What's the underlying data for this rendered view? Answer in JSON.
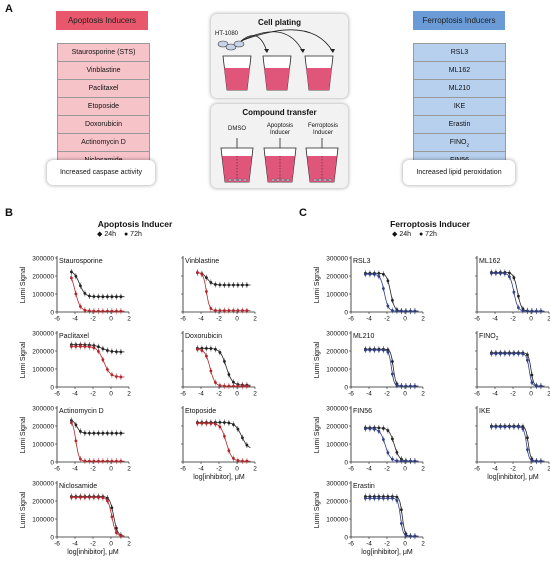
{
  "panelA": {
    "letter": "A",
    "apoptosis": {
      "header": "Apoptosis Inducers",
      "items": [
        "Staurosporine (STS)",
        "Vinblastine",
        "Paclitaxel",
        "Etoposide",
        "Doxorubicin",
        "Actinomycin D",
        "Niclosamide"
      ],
      "outcome": "Increased caspase activity"
    },
    "ferroptosis": {
      "header": "Ferroptosis Inducers",
      "items": [
        "RSL3",
        "ML162",
        "ML210",
        "IKE",
        "Erastin",
        "FINO",
        "FIN56"
      ],
      "fino_sub": "2",
      "outcome": "Increased lipid peroxidation"
    },
    "plating": {
      "title": "Cell plating",
      "cell_line": "HT-1080"
    },
    "transfer": {
      "title": "Compound transfer",
      "wells": [
        "DMSO",
        "Apoptosis Inducer",
        "Ferroptosis Inducer"
      ]
    }
  },
  "panelB": {
    "letter": "B",
    "title": "Apoptosis Inducer",
    "legend": [
      "24h",
      "72h"
    ],
    "color_24h": "#222222",
    "color_72h": "#b3262b"
  },
  "panelC": {
    "letter": "C",
    "title": "Ferroptosis Inducer",
    "legend": [
      "24h",
      "72h"
    ],
    "color_24h": "#222222",
    "color_72h": "#2f3f85"
  },
  "axis": {
    "ylabel": "Lumi Signal",
    "xlabel": "log[inhibitor], μM",
    "yticks": [
      "0",
      "100000",
      "200000",
      "300000"
    ],
    "xticks": [
      "-6",
      "-4",
      "-2",
      "0",
      "2"
    ]
  },
  "chart_data": [
    {
      "type": "scatter",
      "panel": "B",
      "title": "Staurosporine",
      "xlim": [
        -6,
        2
      ],
      "ylim": [
        0,
        300000
      ],
      "series": [
        {
          "name": "24h",
          "top": 230000,
          "bottom": 85000,
          "ic50": -3.5,
          "hill": 1.4
        },
        {
          "name": "72h",
          "top": 235000,
          "bottom": 5000,
          "ic50": -4.0,
          "hill": 1.5
        }
      ]
    },
    {
      "type": "scatter",
      "panel": "B",
      "title": "Vinblastine",
      "xlim": [
        -6,
        2
      ],
      "ylim": [
        0,
        300000
      ],
      "series": [
        {
          "name": "24h",
          "top": 220000,
          "bottom": 150000,
          "ic50": -3.3,
          "hill": 1.5
        },
        {
          "name": "72h",
          "top": 220000,
          "bottom": 8000,
          "ic50": -3.4,
          "hill": 2.5
        }
      ]
    },
    {
      "type": "scatter",
      "panel": "B",
      "title": "Paclitaxel",
      "xlim": [
        -6,
        2
      ],
      "ylim": [
        0,
        300000
      ],
      "series": [
        {
          "name": "24h",
          "top": 235000,
          "bottom": 195000,
          "ic50": -1.0,
          "hill": 1.0
        },
        {
          "name": "72h",
          "top": 225000,
          "bottom": 55000,
          "ic50": -0.8,
          "hill": 1.2
        }
      ]
    },
    {
      "type": "scatter",
      "panel": "B",
      "title": "Doxorubicin",
      "xlim": [
        -6,
        2
      ],
      "ylim": [
        0,
        300000
      ],
      "series": [
        {
          "name": "24h",
          "top": 215000,
          "bottom": 10000,
          "ic50": -1.2,
          "hill": 1.3
        },
        {
          "name": "72h",
          "top": 210000,
          "bottom": 5000,
          "ic50": -3.0,
          "hill": 1.6
        }
      ]
    },
    {
      "type": "scatter",
      "panel": "B",
      "title": "Actinomycin D",
      "xlim": [
        -6,
        2
      ],
      "ylim": [
        0,
        300000
      ],
      "series": [
        {
          "name": "24h",
          "top": 235000,
          "bottom": 160000,
          "ic50": -3.8,
          "hill": 2.0
        },
        {
          "name": "72h",
          "top": 230000,
          "bottom": 5000,
          "ic50": -3.9,
          "hill": 2.5
        }
      ]
    },
    {
      "type": "scatter",
      "panel": "B",
      "title": "Etoposide",
      "xlim": [
        -6,
        2
      ],
      "ylim": [
        0,
        300000
      ],
      "series": [
        {
          "name": "24h",
          "top": 220000,
          "bottom": 70000,
          "ic50": 0.5,
          "hill": 1.2
        },
        {
          "name": "72h",
          "top": 215000,
          "bottom": 5000,
          "ic50": -1.2,
          "hill": 1.4
        }
      ]
    },
    {
      "type": "scatter",
      "panel": "B",
      "title": "Niclosamide",
      "xlim": [
        -6,
        2
      ],
      "ylim": [
        0,
        300000
      ],
      "series": [
        {
          "name": "24h",
          "top": 225000,
          "bottom": 5000,
          "ic50": 0.3,
          "hill": 2.0
        },
        {
          "name": "72h",
          "top": 220000,
          "bottom": 5000,
          "ic50": 0.1,
          "hill": 2.0
        }
      ]
    },
    {
      "type": "scatter",
      "panel": "C",
      "title": "RSL3",
      "xlim": [
        -6,
        2
      ],
      "ylim": [
        0,
        300000
      ],
      "series": [
        {
          "name": "24h",
          "top": 215000,
          "bottom": 5000,
          "ic50": -1.6,
          "hill": 2.0
        },
        {
          "name": "72h",
          "top": 210000,
          "bottom": 5000,
          "ic50": -2.3,
          "hill": 2.0
        }
      ]
    },
    {
      "type": "scatter",
      "panel": "C",
      "title": "ML162",
      "xlim": [
        -6,
        2
      ],
      "ylim": [
        0,
        300000
      ],
      "series": [
        {
          "name": "24h",
          "top": 220000,
          "bottom": 5000,
          "ic50": -1.5,
          "hill": 2.0
        },
        {
          "name": "72h",
          "top": 215000,
          "bottom": 5000,
          "ic50": -1.9,
          "hill": 2.0
        }
      ]
    },
    {
      "type": "scatter",
      "panel": "C",
      "title": "ML210",
      "xlim": [
        -6,
        2
      ],
      "ylim": [
        0,
        300000
      ],
      "series": [
        {
          "name": "24h",
          "top": 210000,
          "bottom": 5000,
          "ic50": -1.3,
          "hill": 3.0
        },
        {
          "name": "72h",
          "top": 205000,
          "bottom": 5000,
          "ic50": -1.5,
          "hill": 3.0
        }
      ]
    },
    {
      "type": "scatter",
      "panel": "C",
      "title": "FINO2",
      "xlim": [
        -6,
        2
      ],
      "ylim": [
        0,
        300000
      ],
      "series": [
        {
          "name": "24h",
          "top": 190000,
          "bottom": 5000,
          "ic50": 0.0,
          "hill": 3.0
        },
        {
          "name": "72h",
          "top": 185000,
          "bottom": 5000,
          "ic50": -0.2,
          "hill": 3.0
        }
      ]
    },
    {
      "type": "scatter",
      "panel": "C",
      "title": "FIN56",
      "xlim": [
        -6,
        2
      ],
      "ylim": [
        0,
        300000
      ],
      "series": [
        {
          "name": "24h",
          "top": 190000,
          "bottom": 5000,
          "ic50": -1.2,
          "hill": 1.5
        },
        {
          "name": "72h",
          "top": 185000,
          "bottom": 5000,
          "ic50": -2.2,
          "hill": 1.5
        }
      ]
    },
    {
      "type": "scatter",
      "panel": "C",
      "title": "IKE",
      "xlim": [
        -6,
        2
      ],
      "ylim": [
        0,
        300000
      ],
      "series": [
        {
          "name": "24h",
          "top": 200000,
          "bottom": 5000,
          "ic50": -0.3,
          "hill": 3.0
        },
        {
          "name": "72h",
          "top": 195000,
          "bottom": 5000,
          "ic50": -0.5,
          "hill": 3.0
        }
      ]
    },
    {
      "type": "scatter",
      "panel": "C",
      "title": "Erastin",
      "xlim": [
        -6,
        2
      ],
      "ylim": [
        0,
        300000
      ],
      "series": [
        {
          "name": "24h",
          "top": 225000,
          "bottom": 5000,
          "ic50": -0.3,
          "hill": 3.0
        },
        {
          "name": "72h",
          "top": 215000,
          "bottom": 5000,
          "ic50": -0.5,
          "hill": 3.0
        }
      ]
    }
  ]
}
